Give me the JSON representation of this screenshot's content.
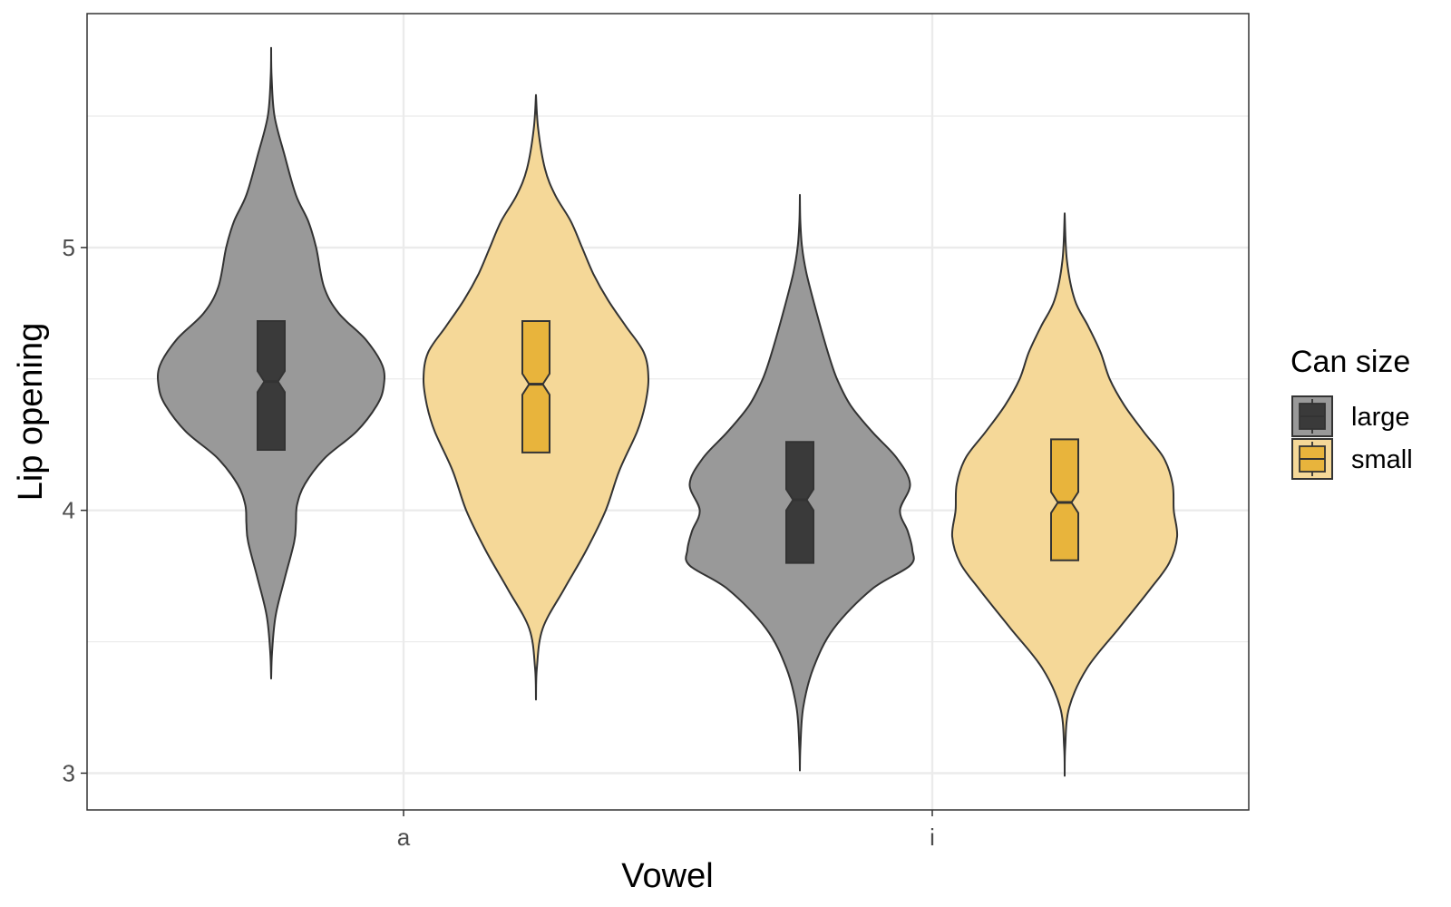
{
  "chart_data": {
    "type": "violin",
    "xlabel": "Vowel",
    "ylabel": "Lip opening",
    "categories": [
      "a",
      "i"
    ],
    "ylim": [
      2.86,
      5.89
    ],
    "yticks": [
      3,
      4,
      5
    ],
    "grid": true,
    "legend": {
      "title": "Can size",
      "position": "right",
      "entries": [
        "large",
        "small"
      ]
    },
    "series": [
      {
        "name": "large",
        "fill": "#999999",
        "box_fill": "#3a3a3a",
        "groups": [
          {
            "category": "a",
            "box": {
              "q1": 4.23,
              "median": 4.49,
              "q3": 4.72,
              "notch_low": 4.45,
              "notch_high": 4.53
            },
            "density": [
              [
                3.36,
                0.0
              ],
              [
                3.46,
                0.008
              ],
              [
                3.6,
                0.04
              ],
              [
                3.74,
                0.12
              ],
              [
                3.88,
                0.205
              ],
              [
                3.95,
                0.22
              ],
              [
                4.02,
                0.23
              ],
              [
                4.1,
                0.3
              ],
              [
                4.2,
                0.48
              ],
              [
                4.3,
                0.76
              ],
              [
                4.4,
                0.94
              ],
              [
                4.47,
                1.0
              ],
              [
                4.55,
                0.99
              ],
              [
                4.65,
                0.84
              ],
              [
                4.75,
                0.6
              ],
              [
                4.85,
                0.47
              ],
              [
                5.0,
                0.4
              ],
              [
                5.1,
                0.33
              ],
              [
                5.2,
                0.22
              ],
              [
                5.35,
                0.12
              ],
              [
                5.5,
                0.03
              ],
              [
                5.65,
                0.004
              ],
              [
                5.76,
                0.0
              ]
            ]
          },
          {
            "category": "i",
            "box": {
              "q1": 3.8,
              "median": 4.04,
              "q3": 4.26,
              "notch_low": 4.0,
              "notch_high": 4.08
            },
            "density": [
              [
                3.01,
                0.0
              ],
              [
                3.1,
                0.005
              ],
              [
                3.25,
                0.03
              ],
              [
                3.4,
                0.12
              ],
              [
                3.55,
                0.3
              ],
              [
                3.7,
                0.64
              ],
              [
                3.79,
                0.98
              ],
              [
                3.85,
                1.0
              ],
              [
                3.92,
                0.96
              ],
              [
                4.0,
                0.89
              ],
              [
                4.1,
                0.98
              ],
              [
                4.2,
                0.86
              ],
              [
                4.3,
                0.64
              ],
              [
                4.4,
                0.45
              ],
              [
                4.5,
                0.33
              ],
              [
                4.6,
                0.25
              ],
              [
                4.75,
                0.15
              ],
              [
                4.9,
                0.06
              ],
              [
                5.0,
                0.02
              ],
              [
                5.1,
                0.004
              ],
              [
                5.2,
                0.0
              ]
            ]
          }
        ]
      },
      {
        "name": "small",
        "fill": "#f5d898",
        "box_fill": "#e8b43c",
        "groups": [
          {
            "category": "a",
            "box": {
              "q1": 4.22,
              "median": 4.48,
              "q3": 4.72,
              "notch_low": 4.44,
              "notch_high": 4.52
            },
            "density": [
              [
                3.28,
                0.0
              ],
              [
                3.4,
                0.008
              ],
              [
                3.55,
                0.06
              ],
              [
                3.7,
                0.25
              ],
              [
                3.85,
                0.45
              ],
              [
                4.0,
                0.62
              ],
              [
                4.15,
                0.74
              ],
              [
                4.3,
                0.9
              ],
              [
                4.4,
                0.97
              ],
              [
                4.5,
                1.0
              ],
              [
                4.6,
                0.96
              ],
              [
                4.7,
                0.8
              ],
              [
                4.8,
                0.64
              ],
              [
                4.9,
                0.51
              ],
              [
                5.0,
                0.41
              ],
              [
                5.1,
                0.31
              ],
              [
                5.2,
                0.17
              ],
              [
                5.3,
                0.08
              ],
              [
                5.45,
                0.02
              ],
              [
                5.58,
                0.0
              ]
            ]
          },
          {
            "category": "i",
            "box": {
              "q1": 3.81,
              "median": 4.03,
              "q3": 4.27,
              "notch_low": 3.99,
              "notch_high": 4.07
            },
            "density": [
              [
                2.99,
                0.0
              ],
              [
                3.1,
                0.005
              ],
              [
                3.25,
                0.04
              ],
              [
                3.4,
                0.2
              ],
              [
                3.55,
                0.48
              ],
              [
                3.7,
                0.76
              ],
              [
                3.8,
                0.93
              ],
              [
                3.9,
                1.0
              ],
              [
                4.0,
                0.97
              ],
              [
                4.1,
                0.96
              ],
              [
                4.2,
                0.88
              ],
              [
                4.3,
                0.7
              ],
              [
                4.4,
                0.53
              ],
              [
                4.5,
                0.4
              ],
              [
                4.6,
                0.32
              ],
              [
                4.7,
                0.21
              ],
              [
                4.8,
                0.09
              ],
              [
                4.95,
                0.02
              ],
              [
                5.13,
                0.0
              ]
            ]
          }
        ]
      }
    ]
  }
}
